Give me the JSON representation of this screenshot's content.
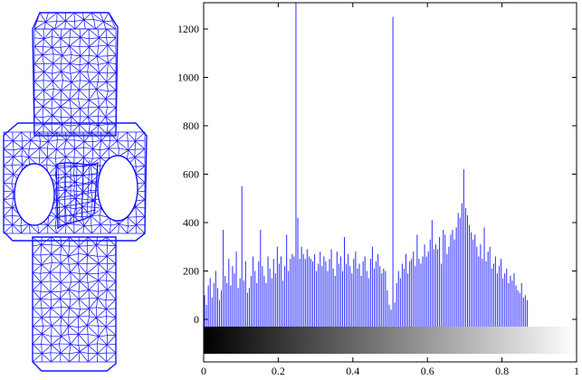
{
  "colors": {
    "mesh": "#1414ff",
    "bars": "#2a2aff",
    "axes": "#000000",
    "background": "#ffffff",
    "colorbar_start": "#000000",
    "colorbar_end": "#ffffff"
  },
  "mesh_panel": {
    "subject": "triangulated-3d-mesh-object"
  },
  "chart_data": {
    "type": "bar",
    "title": "",
    "xlabel": "",
    "ylabel": "",
    "xlim": [
      0,
      1
    ],
    "ylim": [
      -65,
      1310
    ],
    "x_ticks": [
      0,
      0.2,
      0.4,
      0.6,
      0.8,
      1
    ],
    "x_tick_labels": [
      "0",
      "0.2",
      "0.4",
      "0.6",
      "0.8",
      "1"
    ],
    "y_ticks": [
      0,
      200,
      400,
      600,
      800,
      1000,
      1200
    ],
    "y_tick_labels": [
      "0",
      "200",
      "400",
      "600",
      "800",
      "1000",
      "1200"
    ],
    "grid": false,
    "colorbar": {
      "type": "grayscale-gradient",
      "range": [
        0,
        1
      ],
      "direction": "black-to-white"
    },
    "bin_width": 0.005,
    "x_start": 0.0025,
    "values": [
      100,
      60,
      140,
      170,
      90,
      150,
      200,
      130,
      80,
      120,
      370,
      180,
      150,
      250,
      140,
      220,
      190,
      280,
      130,
      170,
      550,
      160,
      240,
      110,
      130,
      180,
      260,
      200,
      150,
      240,
      370,
      220,
      180,
      150,
      260,
      210,
      170,
      250,
      190,
      300,
      230,
      260,
      160,
      220,
      350,
      200,
      250,
      270,
      260,
      1310,
      420,
      250,
      300,
      270,
      250,
      290,
      260,
      250,
      240,
      270,
      200,
      230,
      280,
      220,
      260,
      240,
      200,
      250,
      290,
      210,
      180,
      280,
      230,
      260,
      200,
      340,
      230,
      270,
      220,
      190,
      250,
      280,
      210,
      230,
      180,
      240,
      260,
      200,
      170,
      250,
      300,
      210,
      240,
      270,
      220,
      190,
      210,
      200,
      120,
      60,
      40,
      1250,
      70,
      150,
      200,
      170,
      230,
      210,
      270,
      190,
      240,
      250,
      280,
      220,
      350,
      250,
      230,
      260,
      310,
      260,
      280,
      330,
      410,
      290,
      310,
      290,
      340,
      230,
      370,
      350,
      270,
      300,
      350,
      370,
      330,
      380,
      440,
      420,
      480,
      620,
      460,
      430,
      390,
      360,
      330,
      350,
      300,
      260,
      310,
      250,
      380,
      240,
      280,
      300,
      210,
      230,
      260,
      190,
      220,
      250,
      170,
      190,
      210,
      150,
      180,
      160,
      190,
      140,
      120,
      110,
      150,
      90,
      100,
      80
    ]
  }
}
